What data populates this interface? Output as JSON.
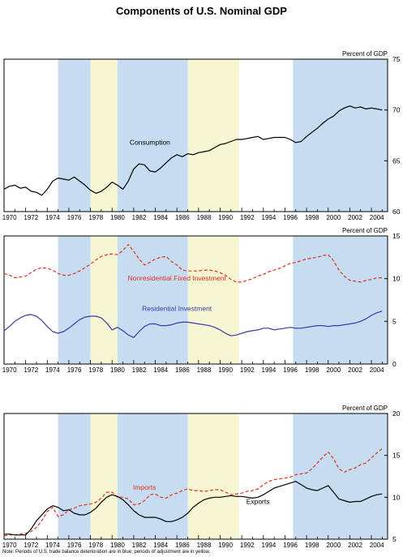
{
  "title": "Components of U.S. Nominal GDP",
  "footnote": "Note:  Periods of U.S. trade balance deterioration are in blue; periods of adjustment are in yellow.",
  "colors": {
    "blue_shade": "#c6dcf1",
    "yellow_shade": "#f6f6d3",
    "black_series": "#000000",
    "red_series": "#e0301e",
    "blue_series": "#3a3aa8"
  },
  "shading": [
    {
      "start": 1975.0,
      "end": 1978.0,
      "kind": "blue"
    },
    {
      "start": 1978.0,
      "end": 1980.5,
      "kind": "yellow"
    },
    {
      "start": 1980.5,
      "end": 1987.0,
      "kind": "blue"
    },
    {
      "start": 1987.0,
      "end": 1991.75,
      "kind": "yellow"
    },
    {
      "start": 1996.75,
      "end": 2005.5,
      "kind": "blue"
    }
  ],
  "chart_data": [
    {
      "type": "line",
      "panel_label": "Percent of GDP",
      "xlim": [
        1970,
        2005.5
      ],
      "ylim": [
        60,
        75
      ],
      "yticks": [
        60,
        65,
        70,
        75
      ],
      "xticks": [
        "1970",
        "1972",
        "1974",
        "1976",
        "1978",
        "1980",
        "1982",
        "1984",
        "1986",
        "1988",
        "1990",
        "1992",
        "1994",
        "1996",
        "1998",
        "2000",
        "2002",
        "2004"
      ],
      "series": [
        {
          "name": "Consumption",
          "color": "black",
          "style": "solid",
          "label_x": 1983.5,
          "label_y": 66.6,
          "x": [
            1970,
            1970.5,
            1971,
            1971.5,
            1972,
            1972.5,
            1973,
            1973.5,
            1974,
            1974.5,
            1975,
            1975.5,
            1976,
            1976.5,
            1977,
            1977.5,
            1978,
            1978.5,
            1979,
            1979.5,
            1980,
            1980.5,
            1981,
            1981.5,
            1982,
            1982.5,
            1983,
            1983.5,
            1984,
            1984.5,
            1985,
            1985.5,
            1986,
            1986.5,
            1987,
            1987.5,
            1988,
            1988.5,
            1989,
            1989.5,
            1990,
            1990.5,
            1991,
            1991.5,
            1992,
            1992.5,
            1993,
            1993.5,
            1994,
            1994.5,
            1995,
            1995.5,
            1996,
            1996.5,
            1997,
            1997.5,
            1998,
            1998.5,
            1999,
            1999.5,
            2000,
            2000.5,
            2001,
            2001.5,
            2002,
            2002.5,
            2003,
            2003.5,
            2004,
            2004.5,
            2005
          ],
          "y": [
            62.2,
            62.5,
            62.6,
            62.3,
            62.4,
            62.0,
            61.9,
            61.6,
            62.2,
            63.0,
            63.3,
            63.2,
            63.1,
            63.4,
            63.0,
            62.6,
            62.1,
            61.8,
            62.0,
            62.4,
            62.9,
            62.6,
            62.2,
            63.0,
            64.2,
            64.7,
            64.6,
            64.0,
            63.9,
            64.3,
            64.8,
            65.3,
            65.6,
            65.4,
            65.7,
            65.6,
            65.8,
            65.9,
            66.0,
            66.3,
            66.6,
            66.7,
            66.9,
            67.1,
            67.1,
            67.2,
            67.3,
            67.4,
            67.1,
            67.2,
            67.3,
            67.3,
            67.3,
            67.1,
            66.8,
            66.9,
            67.4,
            67.8,
            68.2,
            68.7,
            69.1,
            69.4,
            69.9,
            70.2,
            70.4,
            70.2,
            70.3,
            70.1,
            70.2,
            70.1,
            70.0
          ]
        }
      ]
    },
    {
      "type": "line",
      "panel_label": "Percent of GDP",
      "xlim": [
        1970,
        2005.5
      ],
      "ylim": [
        0,
        15
      ],
      "yticks": [
        0,
        5,
        10,
        15
      ],
      "xticks": [
        "1970",
        "1972",
        "1974",
        "1976",
        "1978",
        "1980",
        "1982",
        "1984",
        "1986",
        "1988",
        "1990",
        "1992",
        "1994",
        "1996",
        "1998",
        "2000",
        "2002",
        "2004"
      ],
      "series": [
        {
          "name": "Nonresidential Fixed Investment",
          "color": "red",
          "style": "dashed",
          "label_x": 1986,
          "label_y": 9.8,
          "x": [
            1970,
            1970.5,
            1971,
            1971.5,
            1972,
            1972.5,
            1973,
            1973.5,
            1974,
            1974.5,
            1975,
            1975.5,
            1976,
            1976.5,
            1977,
            1977.5,
            1978,
            1978.5,
            1979,
            1979.5,
            1980,
            1980.5,
            1981,
            1981.5,
            1982,
            1982.5,
            1983,
            1983.5,
            1984,
            1984.5,
            1985,
            1985.5,
            1986,
            1986.5,
            1987,
            1987.5,
            1988,
            1988.5,
            1989,
            1989.5,
            1990,
            1990.5,
            1991,
            1991.5,
            1992,
            1992.5,
            1993,
            1993.5,
            1994,
            1994.5,
            1995,
            1995.5,
            1996,
            1996.5,
            1997,
            1997.5,
            1998,
            1998.5,
            1999,
            1999.5,
            2000,
            2000.5,
            2001,
            2001.5,
            2002,
            2002.5,
            2003,
            2003.5,
            2004,
            2004.5,
            2005
          ],
          "y": [
            10.6,
            10.4,
            10.1,
            10.2,
            10.3,
            10.7,
            11.1,
            11.3,
            11.2,
            11.0,
            10.6,
            10.4,
            10.4,
            10.6,
            10.9,
            11.3,
            11.7,
            12.2,
            12.6,
            12.8,
            12.9,
            12.8,
            13.3,
            14.0,
            13.2,
            12.3,
            11.6,
            11.9,
            12.3,
            12.5,
            12.6,
            12.0,
            11.6,
            11.0,
            10.9,
            10.9,
            10.9,
            11.0,
            11.0,
            10.9,
            10.7,
            10.4,
            9.9,
            9.6,
            9.6,
            9.8,
            10.0,
            10.3,
            10.5,
            10.8,
            11.0,
            11.2,
            11.5,
            11.8,
            11.9,
            12.1,
            12.3,
            12.4,
            12.5,
            12.7,
            12.8,
            12.1,
            11.0,
            10.3,
            9.8,
            9.7,
            9.6,
            9.8,
            9.9,
            10.1,
            10.1
          ]
        },
        {
          "name": "Residential Investment",
          "color": "blue",
          "style": "solid",
          "label_x": 1986,
          "label_y": 6.2,
          "x": [
            1970,
            1970.5,
            1971,
            1971.5,
            1972,
            1972.5,
            1973,
            1973.5,
            1974,
            1974.5,
            1975,
            1975.5,
            1976,
            1976.5,
            1977,
            1977.5,
            1978,
            1978.5,
            1979,
            1979.5,
            1980,
            1980.5,
            1981,
            1981.5,
            1982,
            1982.5,
            1983,
            1983.5,
            1984,
            1984.5,
            1985,
            1985.5,
            1986,
            1986.5,
            1987,
            1987.5,
            1988,
            1988.5,
            1989,
            1989.5,
            1990,
            1990.5,
            1991,
            1991.5,
            1992,
            1992.5,
            1993,
            1993.5,
            1994,
            1994.5,
            1995,
            1995.5,
            1996,
            1996.5,
            1997,
            1997.5,
            1998,
            1998.5,
            1999,
            1999.5,
            2000,
            2000.5,
            2001,
            2001.5,
            2002,
            2002.5,
            2003,
            2003.5,
            2004,
            2004.5,
            2005
          ],
          "y": [
            3.9,
            4.4,
            5.0,
            5.4,
            5.7,
            5.8,
            5.6,
            5.1,
            4.4,
            3.8,
            3.6,
            3.8,
            4.2,
            4.7,
            5.2,
            5.5,
            5.6,
            5.6,
            5.4,
            4.8,
            4.0,
            4.3,
            3.9,
            3.4,
            3.1,
            3.8,
            4.4,
            4.7,
            4.7,
            4.5,
            4.5,
            4.6,
            4.8,
            4.9,
            4.9,
            4.8,
            4.7,
            4.6,
            4.5,
            4.3,
            4.0,
            3.6,
            3.3,
            3.4,
            3.6,
            3.8,
            3.9,
            4.0,
            4.2,
            4.2,
            4.0,
            4.1,
            4.2,
            4.3,
            4.2,
            4.2,
            4.3,
            4.4,
            4.5,
            4.5,
            4.4,
            4.5,
            4.5,
            4.6,
            4.7,
            4.8,
            5.0,
            5.3,
            5.7,
            6.0,
            6.2
          ]
        }
      ]
    },
    {
      "type": "line",
      "panel_label": "Percent of GDP",
      "xlim": [
        1970,
        2005.5
      ],
      "ylim": [
        5,
        20
      ],
      "yticks": [
        5,
        10,
        15,
        20
      ],
      "xticks": [
        "1970",
        "1972",
        "1974",
        "1976",
        "1978",
        "1980",
        "1982",
        "1984",
        "1986",
        "1988",
        "1990",
        "1992",
        "1994",
        "1996",
        "1998",
        "2000",
        "2002",
        "2004"
      ],
      "series": [
        {
          "name": "Imports",
          "color": "red",
          "style": "dashed",
          "label_x": 1983,
          "label_y": 10.9,
          "x": [
            1970,
            1970.5,
            1971,
            1971.5,
            1972,
            1972.5,
            1973,
            1973.5,
            1974,
            1974.5,
            1975,
            1975.5,
            1976,
            1976.5,
            1977,
            1977.5,
            1978,
            1978.5,
            1979,
            1979.5,
            1980,
            1980.5,
            1981,
            1981.5,
            1982,
            1982.5,
            1983,
            1983.5,
            1984,
            1984.5,
            1985,
            1985.5,
            1986,
            1986.5,
            1987,
            1987.5,
            1988,
            1988.5,
            1989,
            1989.5,
            1990,
            1990.5,
            1991,
            1991.5,
            1992,
            1992.5,
            1993,
            1993.5,
            1994,
            1994.5,
            1995,
            1995.5,
            1996,
            1996.5,
            1997,
            1997.5,
            1998,
            1998.5,
            1999,
            1999.5,
            2000,
            2000.5,
            2001,
            2001.5,
            2002,
            2002.5,
            2003,
            2003.5,
            2004,
            2004.5,
            2005
          ],
          "y": [
            5.4,
            5.5,
            5.5,
            5.6,
            5.7,
            5.9,
            6.4,
            7.2,
            8.3,
            8.8,
            7.7,
            7.9,
            8.5,
            8.7,
            9.0,
            9.1,
            9.2,
            9.4,
            9.9,
            10.6,
            10.6,
            10.0,
            10.0,
            9.8,
            9.1,
            9.2,
            9.6,
            10.3,
            10.4,
            10.0,
            9.9,
            10.3,
            10.5,
            10.8,
            11.0,
            10.8,
            10.8,
            10.7,
            10.8,
            10.9,
            10.9,
            10.6,
            10.3,
            10.4,
            10.5,
            10.7,
            10.8,
            11.0,
            11.5,
            11.9,
            12.1,
            12.2,
            12.3,
            12.4,
            12.7,
            12.8,
            12.9,
            13.4,
            14.1,
            14.8,
            15.4,
            14.6,
            13.4,
            13.0,
            13.3,
            13.5,
            13.9,
            14.1,
            14.7,
            15.3,
            15.8
          ]
        },
        {
          "name": "Exports",
          "color": "black",
          "style": "solid",
          "label_x": 1993.5,
          "label_y": 9.2,
          "x": [
            1970,
            1970.5,
            1971,
            1971.5,
            1972,
            1972.5,
            1973,
            1973.5,
            1974,
            1974.5,
            1975,
            1975.5,
            1976,
            1976.5,
            1977,
            1977.5,
            1978,
            1978.5,
            1979,
            1979.5,
            1980,
            1980.5,
            1981,
            1981.5,
            1982,
            1982.5,
            1983,
            1983.5,
            1984,
            1984.5,
            1985,
            1985.5,
            1986,
            1986.5,
            1987,
            1987.5,
            1988,
            1988.5,
            1989,
            1989.5,
            1990,
            1990.5,
            1991,
            1991.5,
            1992,
            1992.5,
            1993,
            1993.5,
            1994,
            1994.5,
            1995,
            1995.5,
            1996,
            1996.5,
            1997,
            1997.5,
            1998,
            1998.5,
            1999,
            1999.5,
            2000,
            2000.5,
            2001,
            2001.5,
            2002,
            2002.5,
            2003,
            2003.5,
            2004,
            2004.5,
            2005
          ],
          "y": [
            5.6,
            5.6,
            5.5,
            5.5,
            5.5,
            6.2,
            7.2,
            7.9,
            8.6,
            9.0,
            8.8,
            8.4,
            8.5,
            8.1,
            7.9,
            7.9,
            8.2,
            8.7,
            9.4,
            10.0,
            10.3,
            10.1,
            9.7,
            9.1,
            8.4,
            7.9,
            7.6,
            7.6,
            7.6,
            7.4,
            7.1,
            7.1,
            7.3,
            7.6,
            8.1,
            8.8,
            9.3,
            9.7,
            9.9,
            10.0,
            10.0,
            10.1,
            10.2,
            10.1,
            10.1,
            10.0,
            9.9,
            10.0,
            10.3,
            10.7,
            11.1,
            11.3,
            11.5,
            11.7,
            11.9,
            11.5,
            11.1,
            10.9,
            10.8,
            11.1,
            11.4,
            10.6,
            9.8,
            9.6,
            9.4,
            9.5,
            9.5,
            9.8,
            10.1,
            10.3,
            10.4
          ]
        }
      ]
    }
  ]
}
